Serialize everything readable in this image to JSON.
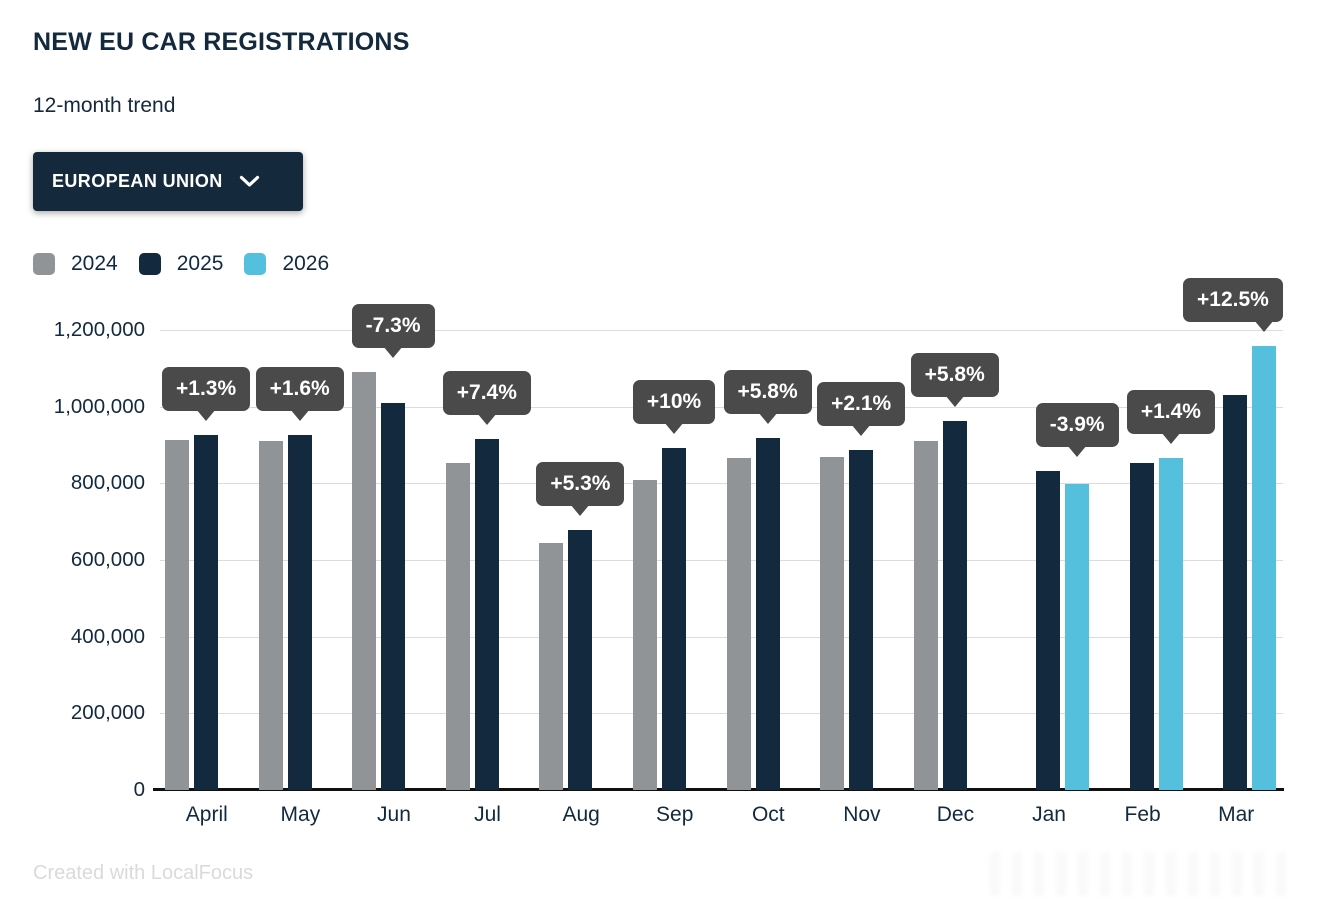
{
  "header": {
    "title": "NEW EU CAR REGISTRATIONS",
    "subtitle": "12-month trend",
    "dropdown_label": "EUROPEAN UNION",
    "dropdown_icon": "chevron-down-icon"
  },
  "colors": {
    "series_2024": "#919497",
    "series_2025": "#13293d",
    "series_2026": "#54c0dd",
    "tooltip_bg": "#4a4a4a",
    "gridline": "#dcdcdc",
    "axis": "#101010",
    "text": "#13293d",
    "attribution_text": "#dadada"
  },
  "chart_data": {
    "type": "bar",
    "title": "NEW EU CAR REGISTRATIONS",
    "subtitle": "12-month trend",
    "categories": [
      "April",
      "May",
      "Jun",
      "Jul",
      "Aug",
      "Sep",
      "Oct",
      "Nov",
      "Dec",
      "Jan",
      "Feb",
      "Mar"
    ],
    "series": [
      {
        "name": "2024",
        "color": "#919497",
        "values": [
          914000,
          911000,
          1090000,
          852000,
          644000,
          810000,
          866000,
          870000,
          910000,
          null,
          null,
          null
        ]
      },
      {
        "name": "2025",
        "color": "#13293d",
        "values": [
          926000,
          926000,
          1010000,
          915000,
          678000,
          891000,
          917000,
          888000,
          963000,
          831000,
          854000,
          1030000
        ]
      },
      {
        "name": "2026",
        "color": "#54c0dd",
        "values": [
          null,
          null,
          null,
          null,
          null,
          null,
          null,
          null,
          null,
          799000,
          866000,
          1159000
        ]
      }
    ],
    "bar_labels": [
      "+1.3%",
      "+1.6%",
      "-7.3%",
      "+7.4%",
      "+5.3%",
      "+10%",
      "+5.8%",
      "+2.1%",
      "+5.8%",
      "-3.9%",
      "+1.4%",
      "+12.5%"
    ],
    "ylabel": "",
    "xlabel": "",
    "ylim": [
      0,
      1200000
    ],
    "yticks": [
      "0",
      "200,000",
      "400,000",
      "600,000",
      "800,000",
      "1,000,000",
      "1,200,000"
    ],
    "grid": true,
    "legend_position": "top-left"
  },
  "footer": {
    "attribution": "Created with LocalFocus"
  }
}
